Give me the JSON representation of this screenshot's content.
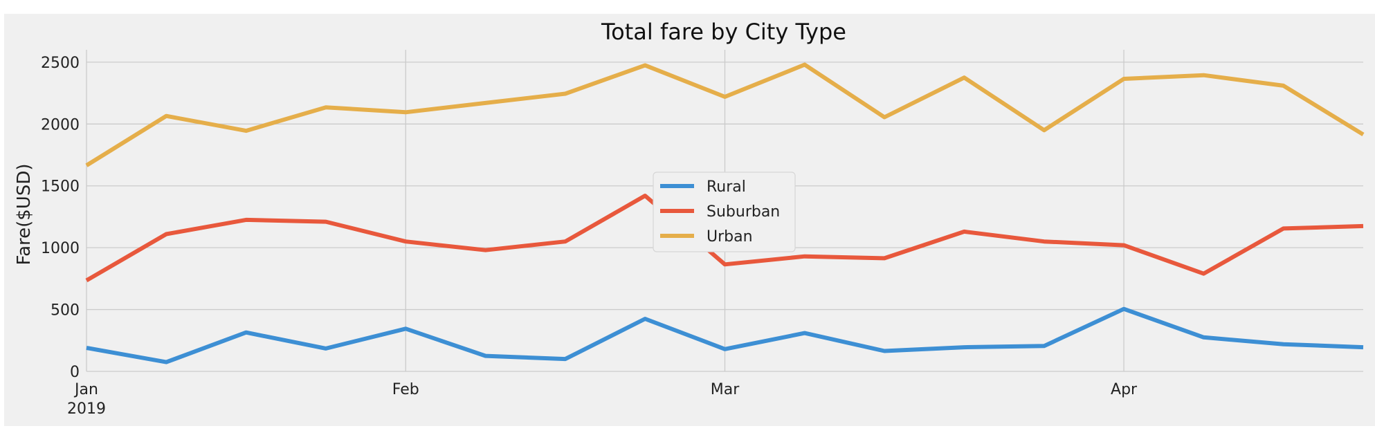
{
  "chart_data": {
    "type": "line",
    "title": "Total fare by City Type",
    "xlabel": "",
    "ylabel": "Fare($USD)",
    "x": [
      "2019-01-06",
      "2019-01-13",
      "2019-01-20",
      "2019-01-27",
      "2019-02-03",
      "2019-02-10",
      "2019-02-17",
      "2019-02-24",
      "2019-03-03",
      "2019-03-10",
      "2019-03-17",
      "2019-03-24",
      "2019-03-31",
      "2019-04-07",
      "2019-04-14",
      "2019-04-21",
      "2019-04-28"
    ],
    "xlim": [
      "2019-01-06",
      "2019-04-28"
    ],
    "xticks": [
      {
        "date": "2019-01-06",
        "label": "Jan",
        "sublabel": "2019"
      },
      {
        "date": "2019-02-03",
        "label": "Feb",
        "sublabel": ""
      },
      {
        "date": "2019-03-03",
        "label": "Mar",
        "sublabel": ""
      },
      {
        "date": "2019-04-07",
        "label": "Apr",
        "sublabel": ""
      }
    ],
    "ylim": [
      0,
      2600
    ],
    "yticks": [
      0,
      500,
      1000,
      1500,
      2000,
      2500
    ],
    "grid": true,
    "legend_position": "center",
    "series": [
      {
        "name": "Rural",
        "color": "#3d8fd4",
        "values": [
          190,
          75,
          315,
          185,
          345,
          125,
          100,
          425,
          180,
          310,
          165,
          195,
          205,
          505,
          275,
          220,
          195
        ]
      },
      {
        "name": "Suburban",
        "color": "#e8583c",
        "values": [
          735,
          1110,
          1225,
          1210,
          1050,
          980,
          1050,
          1420,
          865,
          930,
          915,
          1130,
          1050,
          1020,
          790,
          1155,
          1175
        ]
      },
      {
        "name": "Urban",
        "color": "#e5ae4a",
        "values": [
          1665,
          2065,
          1945,
          2135,
          2095,
          2170,
          2245,
          2475,
          2220,
          2480,
          2055,
          2375,
          1950,
          2365,
          2395,
          2310,
          1915
        ]
      }
    ]
  }
}
